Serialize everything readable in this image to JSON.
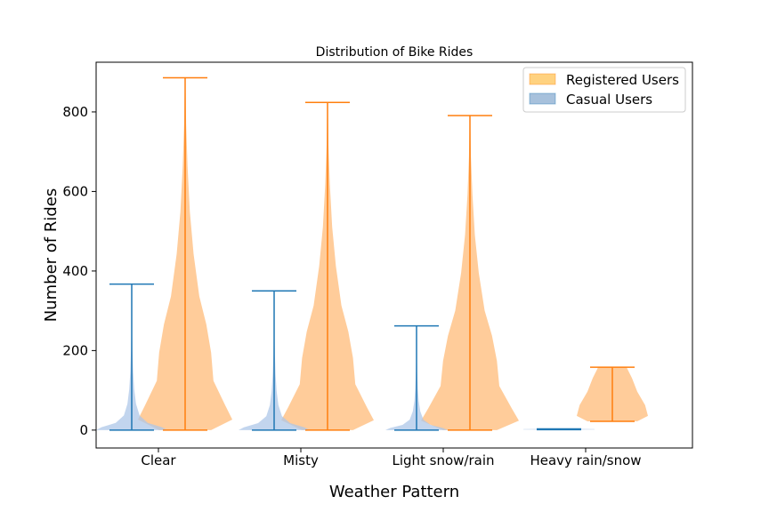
{
  "chart_data": {
    "type": "violin",
    "title": "Distribution of Bike Rides",
    "xlabel": "Weather Pattern",
    "ylabel": "Number of Rides",
    "categories": [
      "Clear",
      "Misty",
      "Light snow/rain",
      "Heavy rain/snow"
    ],
    "ylim": [
      -45,
      925
    ],
    "yticks": [
      0,
      200,
      400,
      600,
      800
    ],
    "grid": false,
    "legend_position": "top-right",
    "series": [
      {
        "name": "Registered Users",
        "color": "#ff7f0e",
        "fill": "#ffbb78",
        "legend_fill": "#ffd280",
        "stats": [
          {
            "min": 0,
            "max": 886
          },
          {
            "min": 0,
            "max": 824
          },
          {
            "min": 0,
            "max": 791
          },
          {
            "min": 22,
            "max": 158
          }
        ]
      },
      {
        "name": "Casual Users",
        "color": "#1f77b4",
        "fill": "#aec7e8",
        "legend_fill": "#a7c1dc",
        "stats": [
          {
            "min": 0,
            "max": 367
          },
          {
            "min": 0,
            "max": 350
          },
          {
            "min": 0,
            "max": 262
          },
          {
            "min": 1,
            "max": 3
          }
        ]
      }
    ]
  }
}
